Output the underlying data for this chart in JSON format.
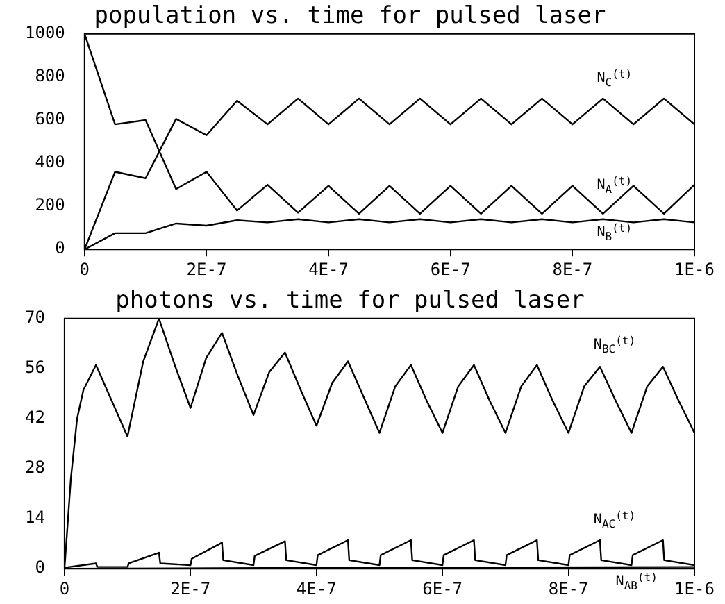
{
  "chart_data": [
    {
      "type": "line",
      "title": "population vs. time for pulsed laser",
      "x": [
        0,
        5e-08,
        1e-07,
        1.5e-07,
        2e-07,
        2.5e-07,
        3e-07,
        3.5e-07,
        4e-07,
        4.5e-07,
        5e-07,
        5.5e-07,
        6e-07,
        6.5e-07,
        7e-07,
        7.5e-07,
        8e-07,
        8.5e-07,
        9e-07,
        9.5e-07,
        1e-06
      ],
      "series": [
        {
          "name": "N$_{C}$$^{(t)}$",
          "color": "#000000",
          "values": [
            0,
            360,
            330,
            605,
            530,
            690,
            580,
            700,
            580,
            700,
            580,
            700,
            580,
            700,
            580,
            700,
            580,
            700,
            580,
            700,
            580
          ]
        },
        {
          "name": "N$_{A}$$^{(t)}$",
          "color": "#000000",
          "values": [
            1000,
            580,
            600,
            280,
            360,
            180,
            300,
            170,
            295,
            165,
            295,
            165,
            295,
            165,
            295,
            165,
            295,
            165,
            295,
            165,
            300
          ]
        },
        {
          "name": "N$_{B}$$^{(t)}$",
          "color": "#000000",
          "values": [
            0,
            75,
            75,
            120,
            110,
            135,
            125,
            140,
            125,
            140,
            125,
            140,
            125,
            140,
            125,
            140,
            125,
            140,
            125,
            140,
            125
          ]
        }
      ],
      "xlim": [
        0,
        1e-06
      ],
      "xticks": [
        0,
        {
          "value": 2e-07,
          "label": "2E-7"
        },
        {
          "value": 4e-07,
          "label": "4E-7"
        },
        {
          "value": 6e-07,
          "label": "6E-7"
        },
        {
          "value": 8e-07,
          "label": "8E-7"
        },
        {
          "value": 1e-06,
          "label": "1E-6"
        }
      ],
      "ylim": [
        0,
        1000
      ],
      "yticks": [
        0,
        200,
        400,
        600,
        800,
        1000
      ],
      "grid": false,
      "legend": false,
      "marker": "none",
      "line_style": "solid"
    },
    {
      "type": "line",
      "title": "photons vs. time for pulsed laser",
      "series": [
        {
          "name": "N$_{BC}$$^{(t)}$",
          "color": "#000000",
          "x": [
            0,
            1e-08,
            2e-08,
            3e-08,
            5e-08,
            7.5e-08,
            1e-07,
            1.25e-07,
            1.5e-07,
            1.75e-07,
            2e-07,
            2.25e-07,
            2.5e-07,
            2.75e-07,
            3e-07,
            3.25e-07,
            3.5e-07,
            3.75e-07,
            4e-07,
            4.25e-07,
            4.5e-07,
            4.75e-07,
            5e-07,
            5.25e-07,
            5.5e-07,
            5.75e-07,
            6e-07,
            6.25e-07,
            6.5e-07,
            6.75e-07,
            7e-07,
            7.25e-07,
            7.5e-07,
            7.75e-07,
            8e-07,
            8.25e-07,
            8.5e-07,
            8.75e-07,
            9e-07,
            9.25e-07,
            9.5e-07,
            9.75e-07,
            1e-06
          ],
          "values": [
            0,
            25,
            42,
            50,
            57,
            47,
            37,
            58,
            70,
            57,
            45,
            59,
            66,
            54,
            43,
            55,
            60.5,
            50,
            40,
            52,
            58,
            48,
            38,
            51,
            57,
            47,
            38,
            51,
            57,
            47,
            38,
            51,
            57,
            47,
            38,
            51,
            56.5,
            47,
            38,
            51,
            56.5,
            47,
            38
          ]
        },
        {
          "name": "N$_{AC}$$^{(t)}$",
          "color": "#000000",
          "x": [
            0,
            5e-08,
            5.2e-08,
            1e-07,
            1.02e-07,
            1.5e-07,
            1.52e-07,
            2e-07,
            2.02e-07,
            2.5e-07,
            2.52e-07,
            3e-07,
            3.02e-07,
            3.5e-07,
            3.52e-07,
            4e-07,
            4.02e-07,
            4.5e-07,
            4.52e-07,
            5e-07,
            5.02e-07,
            5.5e-07,
            5.52e-07,
            6e-07,
            6.02e-07,
            6.5e-07,
            6.52e-07,
            7e-07,
            7.02e-07,
            7.5e-07,
            7.52e-07,
            8e-07,
            8.02e-07,
            8.5e-07,
            8.52e-07,
            9e-07,
            9.02e-07,
            9.5e-07,
            9.52e-07,
            1e-06
          ],
          "values": [
            0.3,
            1.5,
            0.5,
            0.5,
            1.5,
            4.5,
            1.5,
            1,
            2.8,
            7.3,
            2.4,
            1,
            3.6,
            7.7,
            2.4,
            1,
            3.8,
            8,
            2.4,
            1,
            3.8,
            8,
            2.4,
            1,
            3.8,
            8,
            2.4,
            1,
            3.8,
            8,
            2.4,
            1,
            3.8,
            8,
            2.4,
            1,
            3.8,
            8,
            2.4,
            1
          ]
        },
        {
          "name": "N$_{AB}$$^{(t)}$",
          "color": "#000000",
          "x": [
            0,
            5e-07,
            1e-06
          ],
          "values": [
            0,
            0.3,
            0.5
          ]
        }
      ],
      "xlim": [
        0,
        1e-06
      ],
      "xticks": [
        0,
        {
          "value": 2e-07,
          "label": "2E-7"
        },
        {
          "value": 4e-07,
          "label": "4E-7"
        },
        {
          "value": 6e-07,
          "label": "6E-7"
        },
        {
          "value": 8e-07,
          "label": "8E-7"
        },
        {
          "value": 1e-06,
          "label": "1E-6"
        }
      ],
      "ylim": [
        0,
        70
      ],
      "yticks": [
        0,
        14,
        28,
        42,
        56,
        70
      ],
      "grid": false,
      "legend": false,
      "marker": "none",
      "line_style": "solid"
    }
  ]
}
